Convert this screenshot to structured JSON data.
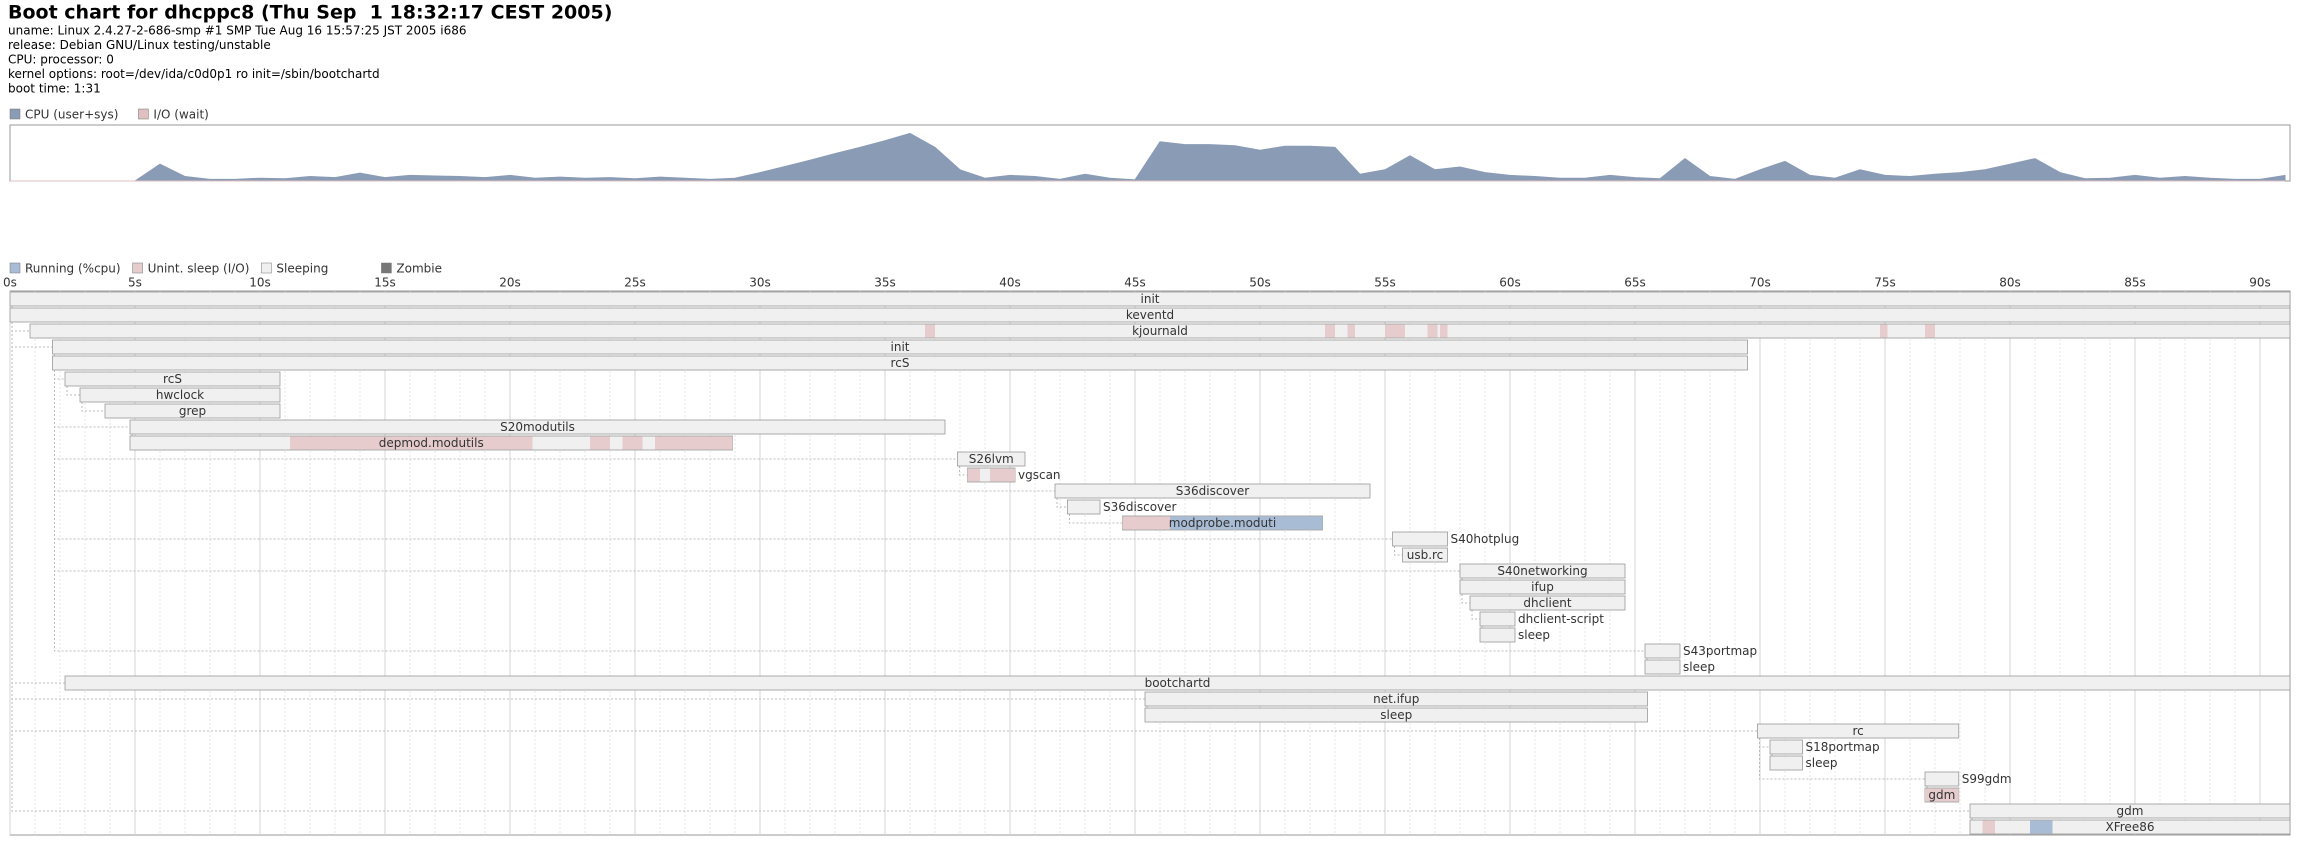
{
  "header": {
    "title": "Boot chart for dhcppc8 (Thu Sep  1 18:32:17 CEST 2005)",
    "lines": [
      "uname: Linux 2.4.27-2-686-smp #1 SMP Tue Aug 16 15:57:25 JST 2005 i686",
      "release: Debian GNU/Linux testing/unstable",
      "CPU: processor: 0",
      "kernel options: root=/dev/ida/c0d0p1 ro init=/sbin/bootchartd",
      "boot time: 1:31"
    ]
  },
  "chart_data": [
    {
      "type": "area",
      "ylim": [
        0,
        100
      ],
      "xlim": [
        0,
        91.2
      ],
      "x": [
        0,
        1,
        2,
        3,
        4,
        5,
        6,
        7,
        8,
        9,
        10,
        11,
        12,
        13,
        14,
        15,
        16,
        17,
        18,
        19,
        20,
        21,
        22,
        23,
        24,
        25,
        26,
        27,
        28,
        29,
        30,
        31,
        32,
        33,
        34,
        35,
        36,
        37,
        38,
        39,
        40,
        41,
        42,
        43,
        44,
        45,
        46,
        47,
        48,
        49,
        50,
        51,
        52,
        53,
        54,
        55,
        56,
        57,
        58,
        59,
        60,
        61,
        62,
        63,
        64,
        65,
        66,
        67,
        68,
        69,
        70,
        71,
        72,
        73,
        74,
        75,
        76,
        77,
        78,
        79,
        80,
        81,
        82,
        83,
        84,
        85,
        86,
        87,
        88,
        89,
        90,
        91
      ],
      "series": [
        {
          "name": "CPU (user+sys)",
          "color": "#8a9bb5",
          "values": [
            0,
            0,
            0,
            0,
            0,
            0,
            30,
            8,
            3,
            3,
            5,
            4,
            8,
            6,
            14,
            6,
            10,
            9,
            8,
            6,
            10,
            5,
            7,
            5,
            6,
            4,
            7,
            5,
            3,
            5,
            15,
            26,
            37,
            49,
            60,
            72,
            85,
            60,
            20,
            5,
            10,
            8,
            3,
            12,
            5,
            2,
            70,
            65,
            65,
            63,
            55,
            62,
            62,
            60,
            12,
            20,
            45,
            20,
            25,
            15,
            10,
            8,
            5,
            5,
            10,
            6,
            4,
            40,
            8,
            3,
            20,
            35,
            10,
            5,
            20,
            10,
            8,
            12,
            15,
            20,
            30,
            40,
            15,
            4,
            5,
            10,
            5,
            8,
            5,
            3,
            3,
            10
          ]
        },
        {
          "name": "I/O (wait)",
          "color": "#dfbfbf",
          "values": [
            0,
            0,
            0,
            0,
            0,
            0,
            0,
            0,
            0,
            0,
            0,
            0,
            0,
            0,
            0,
            0,
            0,
            0,
            0,
            0,
            0,
            0,
            0,
            0,
            0,
            0,
            0,
            0,
            0,
            0,
            0,
            0,
            0,
            0,
            0,
            0,
            0,
            0,
            0,
            0,
            0,
            0,
            0,
            0,
            0,
            0,
            0,
            0,
            0,
            0,
            0,
            0,
            0,
            0,
            0,
            0,
            0,
            0,
            0,
            0,
            0,
            0,
            0,
            0,
            0,
            0,
            0,
            0,
            0,
            0,
            0,
            0,
            0,
            0,
            0,
            0,
            0,
            0,
            0,
            0,
            0,
            0,
            0,
            0,
            0,
            0,
            0,
            0,
            0,
            0,
            0,
            0
          ]
        }
      ]
    },
    {
      "type": "gantt",
      "xlim": [
        0,
        91.2
      ],
      "xticks": [
        {
          "value": 0,
          "label": "0s"
        },
        {
          "value": 5,
          "label": "5s"
        },
        {
          "value": 10,
          "label": "10s"
        },
        {
          "value": 15,
          "label": "15s"
        },
        {
          "value": 20,
          "label": "20s"
        },
        {
          "value": 25,
          "label": "25s"
        },
        {
          "value": 30,
          "label": "30s"
        },
        {
          "value": 35,
          "label": "35s"
        },
        {
          "value": 40,
          "label": "40s"
        },
        {
          "value": 45,
          "label": "45s"
        },
        {
          "value": 50,
          "label": "50s"
        },
        {
          "value": 55,
          "label": "55s"
        },
        {
          "value": 60,
          "label": "60s"
        },
        {
          "value": 65,
          "label": "65s"
        },
        {
          "value": 70,
          "label": "70s"
        },
        {
          "value": 75,
          "label": "75s"
        },
        {
          "value": 80,
          "label": "80s"
        },
        {
          "value": 85,
          "label": "85s"
        },
        {
          "value": 90,
          "label": "90s"
        }
      ],
      "legend": [
        {
          "name": "Running (%cpu)",
          "color": "#a9bcd6"
        },
        {
          "name": "Unint. sleep (I/O)",
          "color": "#e6cccc"
        },
        {
          "name": "Sleeping",
          "color": "#f0f0f0"
        },
        {
          "name": "Zombie",
          "color": "#777777"
        }
      ],
      "processes": [
        {
          "name": "init",
          "start": 0,
          "end": 91.2
        },
        {
          "name": "keventd",
          "start": 0,
          "end": 91.2
        },
        {
          "name": "kjournald",
          "start": 0.8,
          "end": 91.2,
          "io": [
            [
              36.6,
              37
            ],
            [
              52.6,
              53
            ],
            [
              53.5,
              53.8
            ],
            [
              55,
              55.8
            ],
            [
              56.7,
              57.1
            ],
            [
              57.2,
              57.5
            ],
            [
              74.8,
              75.1
            ],
            [
              76.6,
              77
            ]
          ]
        },
        {
          "name": "init",
          "start": 1.7,
          "end": 69.5
        },
        {
          "name": "rcS",
          "start": 1.7,
          "end": 69.5
        },
        {
          "name": "rcS",
          "start": 2.2,
          "end": 10.8
        },
        {
          "name": "hwclock",
          "start": 2.8,
          "end": 10.8
        },
        {
          "name": "grep",
          "start": 3.8,
          "end": 10.8
        },
        {
          "name": "S20modutils",
          "start": 4.8,
          "end": 37.4
        },
        {
          "name": "depmod.modutils",
          "start": 4.8,
          "end": 28.9,
          "io": [
            [
              11.2,
              20.9
            ],
            [
              23.2,
              24
            ],
            [
              24.5,
              25.3
            ],
            [
              25.8,
              28.9
            ]
          ]
        },
        {
          "name": "S26lvm",
          "start": 37.9,
          "end": 40.6
        },
        {
          "name": "vgscan",
          "start": 38.3,
          "end": 40.2,
          "io": [
            [
              38.3,
              38.8
            ],
            [
              39.2,
              40.2
            ]
          ]
        },
        {
          "name": "S36discover",
          "start": 41.8,
          "end": 54.4
        },
        {
          "name": "S36discover",
          "start": 42.3,
          "end": 43.6
        },
        {
          "name": "modprobe.moduti",
          "start": 44.5,
          "end": 52.5,
          "io": [
            [
              44.5,
              46.4
            ]
          ],
          "cpu": [
            [
              46.4,
              52.5
            ]
          ]
        },
        {
          "name": "S40hotplug",
          "start": 55.3,
          "end": 57.5
        },
        {
          "name": "usb.rc",
          "start": 55.7,
          "end": 57.5
        },
        {
          "name": "S40networking",
          "start": 58,
          "end": 64.6
        },
        {
          "name": "ifup",
          "start": 58,
          "end": 64.6
        },
        {
          "name": "dhclient",
          "start": 58.4,
          "end": 64.6
        },
        {
          "name": "dhclient-script",
          "start": 58.8,
          "end": 60.2
        },
        {
          "name": "sleep",
          "start": 58.8,
          "end": 60.2
        },
        {
          "name": "S43portmap",
          "start": 65.4,
          "end": 66.8
        },
        {
          "name": "sleep",
          "start": 65.4,
          "end": 66.8
        },
        {
          "name": "bootchartd",
          "start": 2.2,
          "end": 91.2
        },
        {
          "name": "net.ifup",
          "start": 45.4,
          "end": 65.5
        },
        {
          "name": "sleep",
          "start": 45.4,
          "end": 65.5
        },
        {
          "name": "rc",
          "start": 69.9,
          "end": 77.95
        },
        {
          "name": "S18portmap",
          "start": 70.4,
          "end": 71.7
        },
        {
          "name": "sleep",
          "start": 70.4,
          "end": 71.7
        },
        {
          "name": "S99gdm",
          "start": 76.6,
          "end": 77.95
        },
        {
          "name": "gdm",
          "start": 76.6,
          "end": 77.95,
          "io": [
            [
              76.6,
              77.95
            ]
          ]
        },
        {
          "name": "gdm",
          "start": 78.4,
          "end": 91.2
        },
        {
          "name": "XFree86",
          "start": 78.4,
          "end": 91.2,
          "io": [
            [
              78.9,
              79.4
            ]
          ],
          "cpu": [
            [
              80.8,
              81.7
            ]
          ]
        }
      ]
    }
  ]
}
